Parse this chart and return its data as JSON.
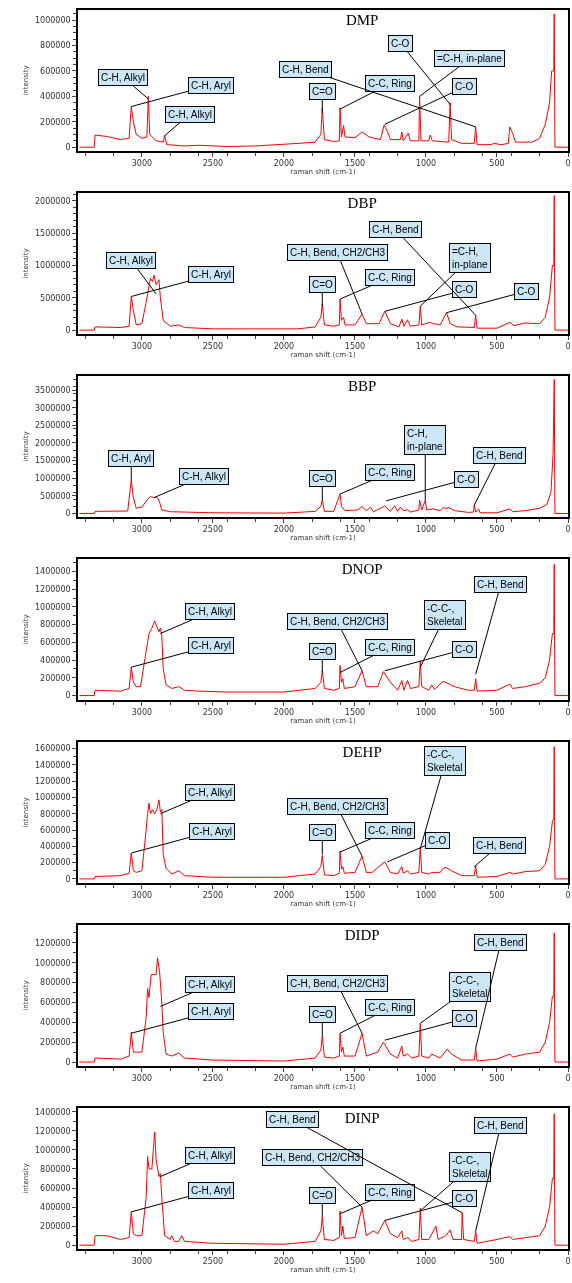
{
  "chart_data": [
    {
      "type": "line",
      "title": "DMP",
      "xlabel": "raman shift (cm-1)",
      "ylabel": "intensity",
      "color": "#ff0000",
      "xlim": [
        3450,
        0
      ],
      "xticks": [
        3000,
        2500,
        2000,
        1500,
        1000,
        500,
        0
      ],
      "ylim": [
        -30000,
        1080000
      ],
      "yticks": [
        0,
        200000,
        400000,
        600000,
        800000,
        1000000
      ],
      "x": [
        3440,
        3336,
        3330,
        3250,
        3150,
        3090,
        3075,
        3060,
        3040,
        3000,
        2965,
        2955,
        2945,
        2900,
        2850,
        2840,
        2825,
        2700,
        2600,
        2400,
        2200,
        1900,
        1780,
        1740,
        1730,
        1715,
        1650,
        1610,
        1605,
        1595,
        1580,
        1570,
        1500,
        1450,
        1400,
        1320,
        1295,
        1270,
        1250,
        1180,
        1170,
        1160,
        1125,
        1110,
        1050,
        1045,
        1035,
        980,
        970,
        955,
        840,
        830,
        820,
        750,
        660,
        650,
        640,
        540,
        520,
        470,
        420,
        410,
        390,
        370,
        300,
        250,
        200,
        160,
        130,
        115,
        100,
        97,
        92,
        0
      ],
      "values": [
        0,
        0,
        95000,
        85000,
        60000,
        70000,
        320000,
        200000,
        100000,
        70000,
        80000,
        400000,
        100000,
        50000,
        40000,
        95000,
        20000,
        10000,
        15000,
        5000,
        10000,
        30000,
        40000,
        100000,
        310000,
        60000,
        45000,
        50000,
        310000,
        80000,
        170000,
        80000,
        75000,
        120000,
        80000,
        60000,
        175000,
        120000,
        60000,
        60000,
        120000,
        50000,
        110000,
        50000,
        50000,
        400000,
        50000,
        50000,
        95000,
        50000,
        40000,
        350000,
        60000,
        30000,
        30000,
        160000,
        20000,
        20000,
        30000,
        20000,
        30000,
        160000,
        110000,
        40000,
        40000,
        40000,
        70000,
        180000,
        350000,
        600000,
        600000,
        1050000,
        0,
        0
      ],
      "annotations": [
        {
          "text": "C-H, Aryl",
          "x": 3075,
          "y": 320000
        },
        {
          "text": "C-H, Alkyl",
          "x": 2955,
          "y": 380000
        },
        {
          "text": "C-H, Alkyl",
          "x": 2840,
          "y": 90000
        },
        {
          "text": "C=O",
          "x": 1730,
          "y": 270000
        },
        {
          "text": "C-C, Ring",
          "x": 1605,
          "y": 300000
        },
        {
          "text": "C-O",
          "x": 1290,
          "y": 180000
        },
        {
          "text": "=C-H, in-plane",
          "x": 1045,
          "y": 400000
        },
        {
          "text": "C-O",
          "x": 825,
          "y": 330000
        },
        {
          "text": "C-H, Bend",
          "x": 650,
          "y": 160000
        }
      ]
    },
    {
      "type": "line",
      "title": "DBP",
      "xlabel": "raman shift (cm-1)",
      "ylabel": "intensity",
      "color": "#ff0000",
      "xlim": [
        3450,
        0
      ],
      "xticks": [
        3000,
        2500,
        2000,
        1500,
        1000,
        500,
        0
      ],
      "ylim": [
        -60000,
        2120000
      ],
      "yticks": [
        0,
        500000,
        1000000,
        1500000,
        2000000
      ],
      "x": [
        3440,
        3336,
        3330,
        3150,
        3090,
        3075,
        3060,
        3040,
        3000,
        2960,
        2940,
        2925,
        2915,
        2900,
        2880,
        2870,
        2850,
        2800,
        2740,
        2700,
        2500,
        2200,
        1900,
        1780,
        1740,
        1730,
        1715,
        1650,
        1610,
        1605,
        1595,
        1580,
        1570,
        1500,
        1450,
        1420,
        1330,
        1290,
        1250,
        1190,
        1170,
        1155,
        1130,
        1110,
        1050,
        1040,
        1030,
        970,
        950,
        900,
        855,
        830,
        780,
        660,
        650,
        640,
        500,
        410,
        380,
        300,
        200,
        160,
        130,
        110,
        100,
        97,
        92,
        0
      ],
      "values": [
        0,
        0,
        50000,
        40000,
        60000,
        520000,
        300000,
        80000,
        100000,
        550000,
        800000,
        750000,
        850000,
        700000,
        780000,
        500000,
        150000,
        60000,
        80000,
        40000,
        20000,
        20000,
        20000,
        50000,
        200000,
        410000,
        80000,
        60000,
        80000,
        480000,
        150000,
        200000,
        80000,
        80000,
        250000,
        100000,
        100000,
        290000,
        100000,
        50000,
        170000,
        60000,
        160000,
        60000,
        80000,
        370000,
        80000,
        120000,
        100000,
        80000,
        270000,
        100000,
        50000,
        40000,
        230000,
        30000,
        30000,
        120000,
        70000,
        110000,
        100000,
        200000,
        500000,
        1000000,
        1000000,
        2080000,
        0,
        0
      ],
      "annotations": [
        {
          "text": "C-H, Aryl",
          "x": 3075,
          "y": 520000
        },
        {
          "text": "C-H, Alkyl",
          "x": 2900,
          "y": 560000
        },
        {
          "text": "C=O",
          "x": 1730,
          "y": 380000
        },
        {
          "text": "C-C, Ring",
          "x": 1605,
          "y": 480000
        },
        {
          "text": "C-H, Bend, CH2/CH3",
          "x": 1450,
          "y": 250000
        },
        {
          "text": "C-O",
          "x": 1290,
          "y": 290000
        },
        {
          "text": "=C-H,\nin-plane",
          "x": 1040,
          "y": 370000
        },
        {
          "text": "C-O",
          "x": 855,
          "y": 270000
        },
        {
          "text": "C-H, Bend",
          "x": 650,
          "y": 230000
        }
      ]
    },
    {
      "type": "line",
      "title": "BBP",
      "xlabel": "raman shift (cm-1)",
      "ylabel": "intensity",
      "color": "#ff0000",
      "xlim": [
        3450,
        0
      ],
      "xticks": [
        3000,
        2500,
        2000,
        1500,
        1000,
        500,
        0
      ],
      "ylim": [
        -100000,
        3900000
      ],
      "yticks": [
        0,
        500000,
        1000000,
        1500000,
        2000000,
        2500000,
        3000000,
        3500000
      ],
      "x": [
        3440,
        3336,
        3330,
        3100,
        3075,
        3060,
        3040,
        3000,
        2960,
        2940,
        2920,
        2895,
        2880,
        2860,
        2800,
        2700,
        2500,
        2000,
        1780,
        1740,
        1730,
        1715,
        1650,
        1605,
        1595,
        1570,
        1480,
        1450,
        1420,
        1390,
        1370,
        1290,
        1250,
        1220,
        1200,
        1180,
        1160,
        1130,
        1110,
        1050,
        1045,
        1030,
        1005,
        995,
        950,
        900,
        880,
        860,
        840,
        800,
        700,
        665,
        660,
        650,
        630,
        620,
        500,
        410,
        390,
        300,
        200,
        150,
        120,
        105,
        97,
        92,
        0
      ],
      "values": [
        0,
        0,
        60000,
        70000,
        950000,
        450000,
        150000,
        180000,
        400000,
        480000,
        450000,
        460000,
        380000,
        100000,
        50000,
        40000,
        20000,
        10000,
        60000,
        200000,
        380000,
        60000,
        60000,
        550000,
        200000,
        80000,
        100000,
        200000,
        80000,
        180000,
        50000,
        210000,
        60000,
        220000,
        60000,
        180000,
        80000,
        100000,
        40000,
        100000,
        380000,
        100000,
        370000,
        100000,
        130000,
        80000,
        170000,
        140000,
        170000,
        80000,
        30000,
        40000,
        240000,
        40000,
        130000,
        20000,
        20000,
        130000,
        50000,
        80000,
        150000,
        250000,
        600000,
        1700000,
        3800000,
        0,
        0
      ],
      "annotations": [
        {
          "text": "C-H, Aryl",
          "x": 3075,
          "y": 950000
        },
        {
          "text": "C-H, Alkyl",
          "x": 2915,
          "y": 450000
        },
        {
          "text": "C=O",
          "x": 1730,
          "y": 380000
        },
        {
          "text": "C-C, Ring",
          "x": 1605,
          "y": 550000
        },
        {
          "text": "C-O",
          "x": 1280,
          "y": 360000
        },
        {
          "text": "C-H,\nin-plane",
          "x": 1005,
          "y": 370000
        },
        {
          "text": "C-H, Bend",
          "x": 660,
          "y": 240000
        }
      ]
    },
    {
      "type": "line",
      "title": "DNOP",
      "xlabel": "raman shift (cm-1)",
      "ylabel": "intensity",
      "color": "#ff0000",
      "xlim": [
        3450,
        0
      ],
      "xticks": [
        3000,
        2500,
        2000,
        1500,
        1000,
        500,
        0
      ],
      "ylim": [
        -50000,
        1540000
      ],
      "yticks": [
        0,
        200000,
        400000,
        600000,
        800000,
        1000000,
        1200000,
        1400000
      ],
      "x": [
        3440,
        3336,
        3330,
        3150,
        3090,
        3075,
        3060,
        3040,
        3010,
        2970,
        2950,
        2930,
        2910,
        2895,
        2880,
        2870,
        2860,
        2850,
        2830,
        2790,
        2740,
        2700,
        2600,
        2400,
        2000,
        1780,
        1740,
        1730,
        1715,
        1650,
        1610,
        1605,
        1595,
        1585,
        1575,
        1500,
        1450,
        1420,
        1340,
        1300,
        1250,
        1200,
        1170,
        1155,
        1130,
        1110,
        1050,
        1040,
        1030,
        980,
        960,
        940,
        880,
        850,
        800,
        700,
        660,
        650,
        640,
        500,
        410,
        390,
        300,
        200,
        160,
        130,
        110,
        100,
        97,
        92,
        0
      ],
      "values": [
        0,
        0,
        60000,
        50000,
        80000,
        320000,
        150000,
        100000,
        100000,
        500000,
        700000,
        760000,
        840000,
        780000,
        720000,
        760000,
        680000,
        300000,
        120000,
        80000,
        100000,
        60000,
        50000,
        40000,
        40000,
        80000,
        150000,
        280000,
        80000,
        60000,
        80000,
        340000,
        150000,
        190000,
        80000,
        100000,
        280000,
        100000,
        100000,
        270000,
        150000,
        60000,
        170000,
        60000,
        170000,
        80000,
        100000,
        390000,
        100000,
        60000,
        120000,
        70000,
        160000,
        140000,
        100000,
        60000,
        60000,
        190000,
        50000,
        60000,
        130000,
        80000,
        100000,
        140000,
        200000,
        400000,
        700000,
        700000,
        1480000,
        0,
        0
      ],
      "annotations": [
        {
          "text": "C-H, Aryl",
          "x": 3075,
          "y": 320000
        },
        {
          "text": "C-H, Alkyl",
          "x": 2870,
          "y": 700000
        },
        {
          "text": "C=O",
          "x": 1730,
          "y": 260000
        },
        {
          "text": "C-C, Ring",
          "x": 1605,
          "y": 260000
        },
        {
          "text": "C-H, Bend, CH2/CH3",
          "x": 1450,
          "y": 280000
        },
        {
          "text": "C-O",
          "x": 1290,
          "y": 280000
        },
        {
          "text": "-C-C-,\nSkeletal",
          "x": 1040,
          "y": 320000
        },
        {
          "text": "C-H, Bend",
          "x": 650,
          "y": 240000
        }
      ]
    },
    {
      "type": "line",
      "title": "DEHP",
      "xlabel": "raman shift (cm-1)",
      "ylabel": "intensity",
      "color": "#ff0000",
      "xlim": [
        3450,
        0
      ],
      "xticks": [
        3000,
        2500,
        2000,
        1500,
        1000,
        500,
        0
      ],
      "ylim": [
        -50000,
        1680000
      ],
      "yticks": [
        0,
        200000,
        400000,
        600000,
        800000,
        1000000,
        1200000,
        1400000,
        1600000
      ],
      "x": [
        3440,
        3336,
        3330,
        3150,
        3090,
        3075,
        3060,
        3040,
        3000,
        2970,
        2960,
        2950,
        2940,
        2925,
        2910,
        2895,
        2880,
        2870,
        2860,
        2850,
        2830,
        2790,
        2740,
        2700,
        2500,
        2000,
        1780,
        1740,
        1730,
        1715,
        1650,
        1610,
        1605,
        1595,
        1585,
        1575,
        1500,
        1450,
        1420,
        1380,
        1290,
        1250,
        1200,
        1170,
        1160,
        1130,
        1110,
        1050,
        1040,
        1030,
        980,
        960,
        900,
        880,
        860,
        820,
        750,
        660,
        650,
        640,
        500,
        410,
        390,
        300,
        200,
        160,
        130,
        110,
        100,
        97,
        92,
        0
      ],
      "values": [
        0,
        0,
        30000,
        40000,
        70000,
        320000,
        100000,
        80000,
        100000,
        600000,
        800000,
        930000,
        800000,
        850000,
        800000,
        850000,
        970000,
        820000,
        850000,
        300000,
        130000,
        60000,
        100000,
        40000,
        20000,
        20000,
        60000,
        150000,
        290000,
        50000,
        40000,
        70000,
        340000,
        120000,
        150000,
        70000,
        80000,
        280000,
        80000,
        80000,
        210000,
        80000,
        60000,
        150000,
        70000,
        100000,
        60000,
        80000,
        380000,
        80000,
        60000,
        80000,
        80000,
        130000,
        140000,
        100000,
        40000,
        40000,
        160000,
        20000,
        30000,
        80000,
        60000,
        90000,
        100000,
        180000,
        400000,
        700000,
        750000,
        1620000,
        0,
        0
      ],
      "annotations": [
        {
          "text": "C-H, Aryl",
          "x": 3070,
          "y": 320000
        },
        {
          "text": "C-H, Alkyl",
          "x": 2870,
          "y": 800000
        },
        {
          "text": "C=O",
          "x": 1730,
          "y": 300000
        },
        {
          "text": "C-C, Ring",
          "x": 1605,
          "y": 330000
        },
        {
          "text": "C-H, Bend, CH2/CH3",
          "x": 1450,
          "y": 280000
        },
        {
          "text": "C-O",
          "x": 1270,
          "y": 210000
        },
        {
          "text": "-C-C-,\nSkeletal",
          "x": 1040,
          "y": 370000
        },
        {
          "text": "C-H, Bend",
          "x": 660,
          "y": 150000
        }
      ]
    },
    {
      "type": "line",
      "title": "DIDP",
      "xlabel": "raman shift (cm-1)",
      "ylabel": "intensity",
      "color": "#ff0000",
      "xlim": [
        3450,
        0
      ],
      "xticks": [
        3000,
        2500,
        2000,
        1500,
        1000,
        500,
        0
      ],
      "ylim": [
        -40000,
        1380000
      ],
      "yticks": [
        0,
        200000,
        400000,
        600000,
        800000,
        1000000,
        1200000
      ],
      "x": [
        3440,
        3336,
        3330,
        3150,
        3090,
        3075,
        3060,
        3040,
        3000,
        2970,
        2960,
        2950,
        2935,
        2915,
        2900,
        2890,
        2875,
        2860,
        2850,
        2830,
        2790,
        2740,
        2700,
        2500,
        2000,
        1780,
        1740,
        1730,
        1715,
        1650,
        1610,
        1605,
        1595,
        1585,
        1575,
        1500,
        1450,
        1420,
        1340,
        1300,
        1250,
        1200,
        1170,
        1160,
        1130,
        1100,
        1050,
        1040,
        1030,
        980,
        960,
        900,
        850,
        820,
        750,
        660,
        650,
        640,
        500,
        410,
        390,
        300,
        200,
        160,
        130,
        110,
        100,
        97,
        92,
        0
      ],
      "values": [
        0,
        0,
        40000,
        30000,
        60000,
        300000,
        100000,
        100000,
        100000,
        450000,
        740000,
        650000,
        880000,
        880000,
        880000,
        1050000,
        900000,
        600000,
        300000,
        80000,
        60000,
        90000,
        40000,
        20000,
        10000,
        40000,
        120000,
        260000,
        50000,
        40000,
        60000,
        290000,
        100000,
        150000,
        60000,
        60000,
        290000,
        60000,
        100000,
        200000,
        80000,
        40000,
        160000,
        60000,
        80000,
        40000,
        60000,
        390000,
        60000,
        40000,
        80000,
        40000,
        130000,
        80000,
        20000,
        20000,
        140000,
        10000,
        30000,
        80000,
        50000,
        80000,
        100000,
        200000,
        400000,
        660000,
        660000,
        1300000,
        0,
        0
      ],
      "annotations": [
        {
          "text": "C-H, Aryl",
          "x": 3075,
          "y": 290000
        },
        {
          "text": "C-H, Alkyl",
          "x": 2870,
          "y": 560000
        },
        {
          "text": "C=O",
          "x": 1730,
          "y": 260000
        },
        {
          "text": "C-C, Ring",
          "x": 1605,
          "y": 290000
        },
        {
          "text": "C-H, Bend, CH2/CH3",
          "x": 1450,
          "y": 290000
        },
        {
          "text": "C-O",
          "x": 1290,
          "y": 220000
        },
        {
          "text": "-C-C-,\nSkeletal",
          "x": 1040,
          "y": 390000
        },
        {
          "text": "C-H, Bend",
          "x": 650,
          "y": 140000
        }
      ]
    },
    {
      "type": "line",
      "title": "DINP",
      "xlabel": "raman shift (cm-1)",
      "ylabel": "intensity",
      "color": "#ff0000",
      "xlim": [
        3450,
        0
      ],
      "xticks": [
        3000,
        2500,
        2000,
        1500,
        1000,
        500,
        0
      ],
      "ylim": [
        -40000,
        1440000
      ],
      "yticks": [
        0,
        200000,
        400000,
        600000,
        800000,
        1000000,
        1200000,
        1400000
      ],
      "x": [
        3440,
        3336,
        3330,
        3250,
        3150,
        3090,
        3075,
        3060,
        3040,
        3000,
        2970,
        2960,
        2950,
        2930,
        2910,
        2900,
        2880,
        2870,
        2860,
        2840,
        2800,
        2790,
        2770,
        2740,
        2720,
        2700,
        2500,
        2000,
        1780,
        1740,
        1730,
        1715,
        1650,
        1610,
        1605,
        1595,
        1585,
        1575,
        1500,
        1450,
        1420,
        1370,
        1340,
        1290,
        1250,
        1200,
        1170,
        1160,
        1130,
        1100,
        1050,
        1040,
        1030,
        980,
        930,
        915,
        860,
        830,
        810,
        750,
        745,
        735,
        660,
        650,
        640,
        500,
        410,
        390,
        300,
        200,
        160,
        130,
        110,
        100,
        97,
        92,
        0
      ],
      "values": [
        0,
        0,
        100000,
        100000,
        60000,
        80000,
        350000,
        120000,
        100000,
        100000,
        500000,
        930000,
        800000,
        800000,
        1190000,
        900000,
        720000,
        750000,
        500000,
        100000,
        60000,
        100000,
        40000,
        40000,
        100000,
        40000,
        20000,
        10000,
        40000,
        150000,
        300000,
        60000,
        50000,
        80000,
        360000,
        100000,
        200000,
        70000,
        80000,
        400000,
        100000,
        150000,
        120000,
        260000,
        120000,
        80000,
        150000,
        60000,
        80000,
        40000,
        60000,
        390000,
        60000,
        60000,
        200000,
        60000,
        100000,
        160000,
        60000,
        60000,
        340000,
        60000,
        40000,
        150000,
        20000,
        60000,
        90000,
        60000,
        80000,
        100000,
        200000,
        400000,
        700000,
        700000,
        1380000,
        0,
        0
      ],
      "annotations": [
        {
          "text": "C-H, Aryl",
          "x": 3075,
          "y": 350000
        },
        {
          "text": "C-H, Alkyl",
          "x": 2870,
          "y": 720000
        },
        {
          "text": "C=O",
          "x": 1730,
          "y": 300000
        },
        {
          "text": "C-C, Ring",
          "x": 1605,
          "y": 330000
        },
        {
          "text": "C-H, Bend, CH2/CH3",
          "x": 1450,
          "y": 400000
        },
        {
          "text": "C-O",
          "x": 1290,
          "y": 260000
        },
        {
          "text": "-C-C-,\nSkeletal",
          "x": 1040,
          "y": 360000
        },
        {
          "text": "C-H, Bend",
          "x": 745,
          "y": 340000
        },
        {
          "text": "C-H, Bend",
          "x": 650,
          "y": 150000
        }
      ]
    }
  ]
}
